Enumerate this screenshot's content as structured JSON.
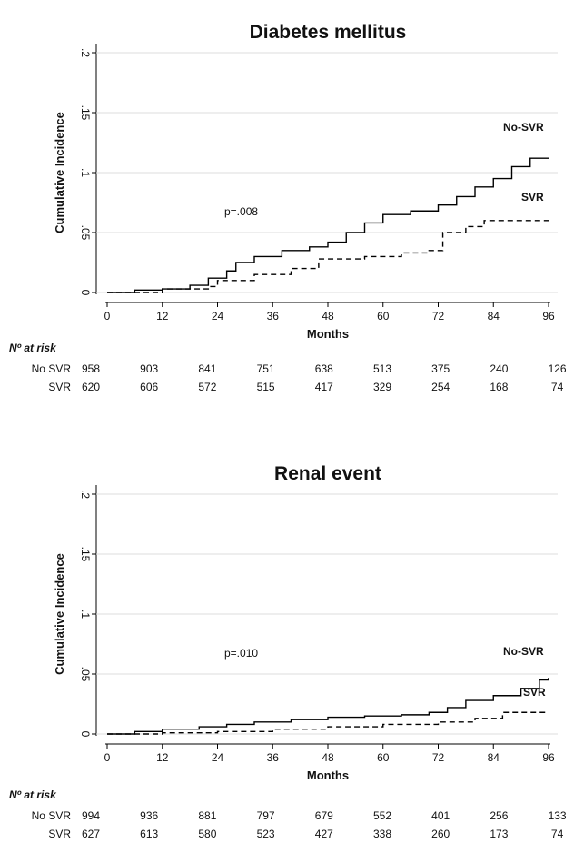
{
  "chart_data": [
    {
      "type": "line",
      "step": true,
      "title": "Diabetes mellitus",
      "x_label": "Months",
      "y_label": "Cumulative Incidence",
      "annotation": "p=.008",
      "grid": true,
      "xlim": [
        0,
        96
      ],
      "xticks": [
        0,
        12,
        24,
        36,
        48,
        60,
        72,
        84,
        96
      ],
      "ylim": [
        0,
        0.2
      ],
      "yticks": [
        0,
        {
          "value": 0.05,
          "label": ".05"
        },
        {
          "value": 0.1,
          "label": ".1"
        },
        {
          "value": 0.15,
          "label": ".15"
        },
        {
          "value": 0.2,
          "label": ".2"
        }
      ],
      "series": [
        {
          "name": "No-SVR",
          "color": "#000000",
          "dash": false,
          "x": [
            0,
            6,
            12,
            18,
            22,
            26,
            28,
            32,
            38,
            44,
            48,
            52,
            56,
            60,
            66,
            72,
            76,
            80,
            84,
            88,
            92,
            96
          ],
          "values": [
            0,
            0.002,
            0.003,
            0.006,
            0.012,
            0.018,
            0.025,
            0.03,
            0.035,
            0.038,
            0.042,
            0.05,
            0.058,
            0.065,
            0.068,
            0.073,
            0.08,
            0.088,
            0.095,
            0.105,
            0.112,
            0.112
          ]
        },
        {
          "name": "SVR",
          "color": "#000000",
          "dash": true,
          "x": [
            0,
            12,
            22,
            24,
            32,
            40,
            46,
            56,
            64,
            70,
            73,
            78,
            82,
            96
          ],
          "values": [
            0,
            0.003,
            0.005,
            0.01,
            0.015,
            0.02,
            0.028,
            0.03,
            0.033,
            0.035,
            0.05,
            0.055,
            0.06,
            0.06
          ]
        }
      ],
      "risk_table": {
        "title": "Nº at risk",
        "rows": [
          {
            "label": "No SVR",
            "values": [
              958,
              903,
              841,
              751,
              638,
              513,
              375,
              240,
              126
            ]
          },
          {
            "label": "SVR",
            "values": [
              620,
              606,
              572,
              515,
              417,
              329,
              254,
              168,
              74
            ]
          }
        ]
      }
    },
    {
      "type": "line",
      "step": true,
      "title": "Renal event",
      "x_label": "Months",
      "y_label": "Cumulative Incidence",
      "annotation": "p=.010",
      "grid": true,
      "xlim": [
        0,
        96
      ],
      "xticks": [
        0,
        12,
        24,
        36,
        48,
        60,
        72,
        84,
        96
      ],
      "ylim": [
        0,
        0.2
      ],
      "yticks": [
        0,
        {
          "value": 0.05,
          "label": ".05"
        },
        {
          "value": 0.1,
          "label": ".1"
        },
        {
          "value": 0.15,
          "label": ".15"
        },
        {
          "value": 0.2,
          "label": ".2"
        }
      ],
      "series": [
        {
          "name": "No-SVR",
          "color": "#000000",
          "dash": false,
          "x": [
            0,
            6,
            12,
            20,
            26,
            32,
            40,
            48,
            56,
            64,
            70,
            74,
            78,
            84,
            90,
            94,
            96
          ],
          "values": [
            0,
            0.002,
            0.004,
            0.006,
            0.008,
            0.01,
            0.012,
            0.014,
            0.015,
            0.016,
            0.018,
            0.022,
            0.028,
            0.032,
            0.038,
            0.045,
            0.047
          ]
        },
        {
          "name": "SVR",
          "color": "#000000",
          "dash": true,
          "x": [
            0,
            12,
            24,
            36,
            48,
            60,
            72,
            80,
            86,
            96
          ],
          "values": [
            0,
            0.001,
            0.002,
            0.004,
            0.006,
            0.008,
            0.01,
            0.013,
            0.018,
            0.018
          ]
        }
      ],
      "risk_table": {
        "title": "Nº at risk",
        "rows": [
          {
            "label": "No SVR",
            "values": [
              994,
              936,
              881,
              797,
              679,
              552,
              401,
              256,
              133
            ]
          },
          {
            "label": "SVR",
            "values": [
              627,
              613,
              580,
              523,
              427,
              338,
              260,
              173,
              74
            ]
          }
        ]
      }
    }
  ]
}
